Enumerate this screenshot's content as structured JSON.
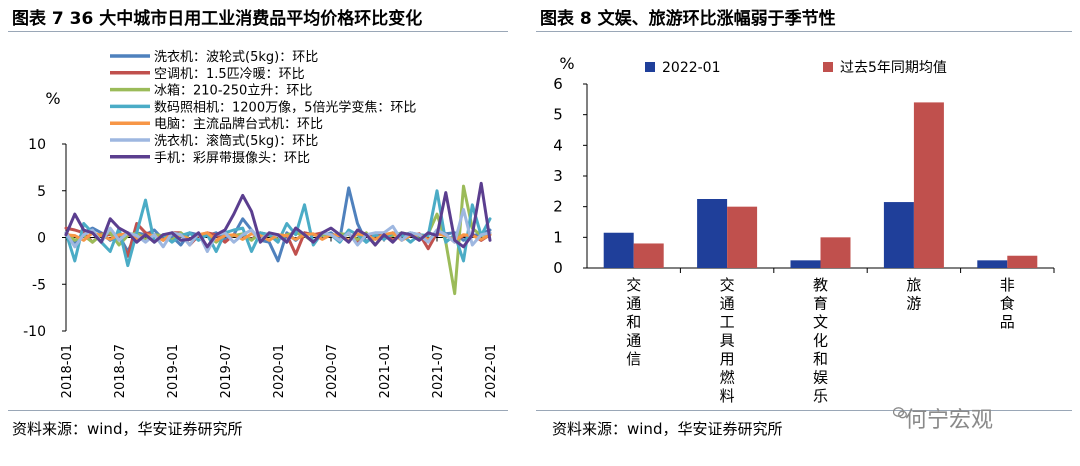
{
  "left": {
    "title": "图表 7 36 大中城市日用工业消费品平均价格环比变化",
    "source": "资料来源：wind，华安证券研究所"
  },
  "right": {
    "title": "图表 8  文娱、旅游环比涨幅弱于季节性",
    "source": "资料来源：wind，华安证券研究所"
  },
  "watermark": "何宁宏观",
  "colors": {
    "bar1": "#1f3f9a",
    "bar2": "#c0504d"
  },
  "chart_data": [
    {
      "type": "line",
      "title": "36 大中城市日用工业消费品平均价格环比变化",
      "ylabel": "%",
      "ylim": [
        -10,
        10
      ],
      "yticks": [
        10,
        5,
        0,
        -5,
        -10
      ],
      "x_tick_labels": [
        "2018-01",
        "2018-07",
        "2019-01",
        "2019-07",
        "2020-01",
        "2020-07",
        "2021-01",
        "2021-07",
        "2022-01"
      ],
      "n_points": 49,
      "series": [
        {
          "name": "洗衣机：波轮式(5kg)：环比",
          "color": "#4f81bd",
          "values": [
            0.3,
            -0.5,
            0.5,
            1.0,
            0.5,
            -0.3,
            0.2,
            -1.5,
            0.5,
            0.3,
            0.8,
            -0.2,
            0.1,
            -0.8,
            0.5,
            0.3,
            0.2,
            0.5,
            -0.2,
            0.3,
            2.0,
            0.8,
            -0.3,
            -0.5,
            -2.5,
            0.5,
            -0.3,
            0.5,
            0.3,
            0.2,
            0.5,
            -0.2,
            5.3,
            1.5,
            -0.5,
            0.3,
            -0.2,
            0.5,
            0.2,
            0.5,
            0.3,
            -0.4,
            0.8,
            0.4,
            0.5,
            -0.3,
            0.2,
            0.4,
            0.8
          ]
        },
        {
          "name": "空调机：1.5匹冷暖：环比",
          "color": "#c0504d",
          "values": [
            1.0,
            0.8,
            0.5,
            -0.5,
            0.4,
            0.3,
            0.2,
            -2.0,
            1.5,
            0.5,
            0.3,
            -0.3,
            0.5,
            0.5,
            -0.8,
            0.2,
            0.5,
            0.3,
            -0.5,
            0.3,
            0.2,
            -0.2,
            0.5,
            0.3,
            -0.2,
            0.3,
            -1.8,
            0.5,
            0.3,
            0.5,
            0.2,
            0.3,
            0.4,
            -0.5,
            0.3,
            0.2,
            0.5,
            -0.3,
            0.3,
            0.2,
            0.4,
            -1.2,
            0.5,
            0.3,
            -0.5,
            0.2,
            0.3,
            -0.3,
            0.3
          ]
        },
        {
          "name": "冰箱：210-250立升：环比",
          "color": "#9bbb59",
          "values": [
            0.5,
            -0.3,
            0.2,
            -0.5,
            0.3,
            0.5,
            -0.8,
            0.2,
            0.5,
            -0.2,
            0.3,
            0.2,
            -0.3,
            0.5,
            -0.2,
            0.3,
            0.2,
            -0.5,
            0.3,
            0.2,
            0.4,
            -0.3,
            0.5,
            0.2,
            -0.2,
            0.3,
            0.5,
            0.2,
            -0.5,
            0.3,
            0.2,
            0.4,
            0.3,
            -0.2,
            0.5,
            -0.8,
            0.3,
            0.2,
            0.5,
            0.3,
            -0.2,
            0.4,
            2.5,
            -0.5,
            -6.0,
            5.5,
            1.0,
            0.2,
            0.5
          ]
        },
        {
          "name": "数码照相机：1200万像，5倍光学变焦：环比",
          "color": "#4bacc6",
          "values": [
            0.5,
            -2.5,
            1.5,
            0.5,
            -0.5,
            -1.5,
            1.0,
            -3.0,
            0.5,
            4.0,
            -0.5,
            0.3,
            -0.5,
            0.2,
            0.5,
            -0.3,
            0.3,
            -1.5,
            0.5,
            0.8,
            1.0,
            -1.5,
            0.5,
            0.3,
            -0.5,
            1.5,
            0.3,
            3.5,
            -0.8,
            0.5,
            0.3,
            -0.5,
            0.8,
            0.3,
            -0.5,
            0.3,
            -0.2,
            0.5,
            0.3,
            -0.5,
            0.3,
            0.2,
            5.0,
            -0.5,
            0.3,
            -2.5,
            3.5,
            0.2,
            2.0
          ]
        },
        {
          "name": "电脑：主流品牌台式机：环比",
          "color": "#f79646",
          "values": [
            0.3,
            0.2,
            -0.3,
            0.5,
            0.2,
            -0.2,
            0.3,
            0.4,
            -0.2,
            0.3,
            0.2,
            -0.3,
            0.4,
            0.2,
            -0.2,
            0.3,
            0.5,
            -0.3,
            0.2,
            0.3,
            -0.2,
            0.4,
            0.2,
            -0.3,
            0.3,
            0.2,
            -0.2,
            0.3,
            0.4,
            -0.2,
            0.3,
            0.2,
            -0.3,
            0.4,
            0.2,
            -0.2,
            0.3,
            0.5,
            -0.3,
            0.2,
            0.3,
            -0.2,
            0.4,
            0.2,
            -0.3,
            0.3,
            0.2,
            -0.2,
            0.3
          ]
        },
        {
          "name": "洗衣机：滚筒式(5kg)：环比",
          "color": "#9eb7e0",
          "values": [
            0.5,
            -1.0,
            0.3,
            0.8,
            -0.5,
            1.0,
            -0.3,
            0.5,
            0.2,
            -0.5,
            0.3,
            -1.0,
            0.5,
            0.3,
            -0.8,
            0.5,
            -1.5,
            0.3,
            0.5,
            -0.5,
            0.3,
            0.8,
            -0.3,
            0.5,
            0.2,
            -0.5,
            1.0,
            0.3,
            -0.5,
            0.5,
            0.3,
            -0.3,
            0.5,
            -0.8,
            0.3,
            0.5,
            0.5,
            1.2,
            -0.3,
            0.5,
            0.3,
            -0.5,
            0.8,
            0.3,
            -0.5,
            3.0,
            -0.8,
            0.3,
            0.5
          ]
        },
        {
          "name": "手机：彩屏带摄像头：环比",
          "color": "#5b3e8f",
          "values": [
            0.3,
            2.5,
            0.8,
            0.5,
            -0.5,
            2.0,
            1.0,
            0.5,
            -0.5,
            0.3,
            -0.5,
            0.3,
            0.5,
            -0.3,
            -0.2,
            0.5,
            -1.0,
            0.3,
            0.8,
            2.5,
            4.5,
            2.8,
            -0.5,
            0.5,
            0.3,
            -0.5,
            1.0,
            0.3,
            -0.5,
            0.5,
            1.0,
            0.3,
            -0.5,
            0.8,
            0.3,
            -0.8,
            0.3,
            -0.5,
            0.5,
            0.3,
            -0.3,
            0.5,
            0.2,
            4.8,
            -0.3,
            -1.0,
            0.3,
            5.8,
            -0.3
          ]
        }
      ]
    },
    {
      "type": "bar",
      "title": "文娱、旅游环比涨幅弱于季节性",
      "ylabel": "%",
      "ylim": [
        0,
        6
      ],
      "yticks": [
        0,
        1,
        2,
        3,
        4,
        5,
        6
      ],
      "categories": [
        "交通和通信",
        "交通工具用燃料",
        "教育文化和娱乐",
        "旅游",
        "非食品"
      ],
      "series": [
        {
          "name": "2022-01",
          "values": [
            1.15,
            2.25,
            0.25,
            2.15,
            0.25
          ]
        },
        {
          "name": "过去5年同期均值",
          "values": [
            0.8,
            2.0,
            1.0,
            5.4,
            0.4
          ]
        }
      ]
    }
  ]
}
